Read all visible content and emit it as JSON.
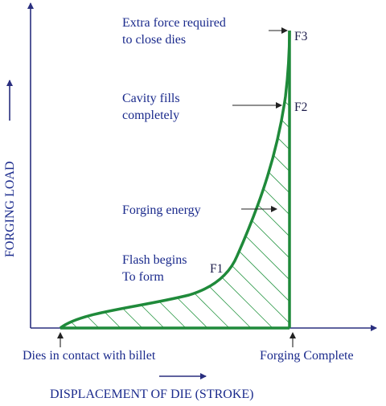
{
  "diagram": {
    "axes": {
      "y_label": "FORGING LOAD",
      "x_label": "DISPLACEMENT OF DIE (STROKE)"
    },
    "points": {
      "f1": "F1",
      "f2": "F2",
      "f3": "F3"
    },
    "annotations": {
      "extra_force": [
        "Extra force required",
        "to close dies"
      ],
      "cavity_fills": [
        "Cavity fills",
        "completely"
      ],
      "forging_energy": "Forging energy",
      "flash_begins": [
        "Flash begins",
        "To form"
      ],
      "dies_contact": "Dies in contact with billet",
      "forging_complete": "Forging Complete"
    },
    "colors": {
      "curve": "#1f8a3a",
      "axes": "#2a2f7f",
      "text": "#1a2a8c"
    }
  }
}
